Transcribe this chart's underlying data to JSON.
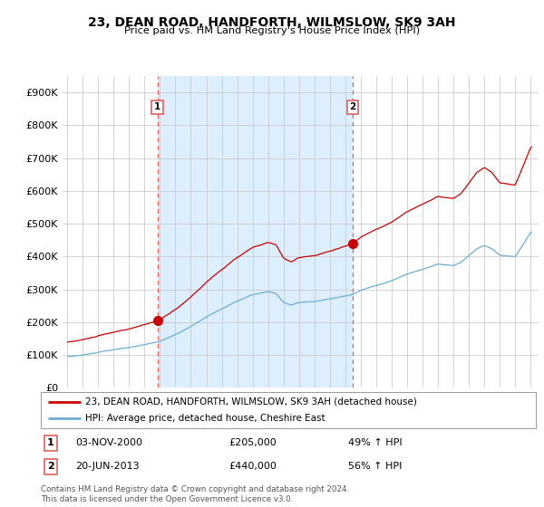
{
  "title": "23, DEAN ROAD, HANDFORTH, WILMSLOW, SK9 3AH",
  "subtitle": "Price paid vs. HM Land Registry's House Price Index (HPI)",
  "yticks": [
    0,
    100000,
    200000,
    300000,
    400000,
    500000,
    600000,
    700000,
    800000,
    900000
  ],
  "ytick_labels": [
    "£0",
    "£100K",
    "£200K",
    "£300K",
    "£400K",
    "£500K",
    "£600K",
    "£700K",
    "£800K",
    "£900K"
  ],
  "xlim_start": 1994.7,
  "xlim_end": 2025.5,
  "ylim_min": 0,
  "ylim_max": 950000,
  "sale1_date": 2000.84,
  "sale1_price": 205000,
  "sale1_label": "1",
  "sale1_date_str": "03-NOV-2000",
  "sale1_price_str": "£205,000",
  "sale1_hpi_str": "49% ↑ HPI",
  "sale2_date": 2013.47,
  "sale2_price": 440000,
  "sale2_label": "2",
  "sale2_date_str": "20-JUN-2013",
  "sale2_price_str": "£440,000",
  "sale2_hpi_str": "56% ↑ HPI",
  "hpi_color": "#6baed6",
  "sale_color": "#cc0000",
  "vline_color": "#e06060",
  "shade_color": "#ddeeff",
  "legend_label_sale": "23, DEAN ROAD, HANDFORTH, WILMSLOW, SK9 3AH (detached house)",
  "legend_label_hpi": "HPI: Average price, detached house, Cheshire East",
  "footer": "Contains HM Land Registry data © Crown copyright and database right 2024.\nThis data is licensed under the Open Government Licence v3.0.",
  "background_color": "#ffffff",
  "grid_color": "#cccccc"
}
